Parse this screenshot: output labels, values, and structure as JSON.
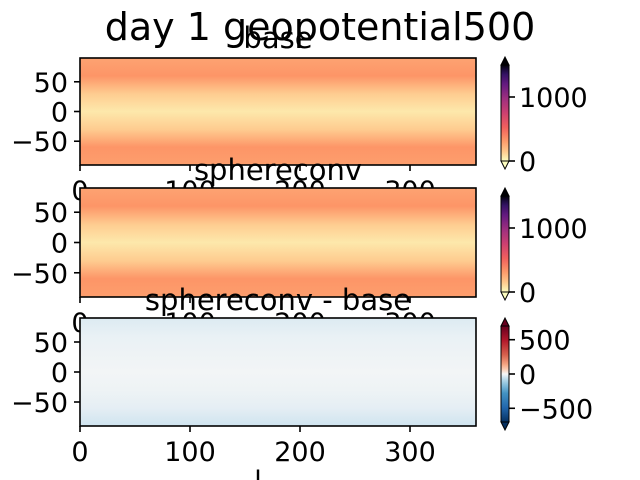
{
  "figure": {
    "suptitle": "day 1 geopotential500",
    "xlabel_fragment": "l"
  },
  "chart_data": [
    {
      "type": "heatmap",
      "title": "base",
      "xlabel": "",
      "ylabel": "",
      "xlim": [
        0,
        360
      ],
      "ylim": [
        -90,
        90
      ],
      "x_ticks": [
        0,
        100,
        200,
        300
      ],
      "y_ticks": [
        50,
        0,
        -50
      ],
      "y_tick_labels": [
        "50",
        "0",
        "−50"
      ],
      "colorbar": {
        "colormap": "magma_r",
        "vmin": 0,
        "vmax": 1500,
        "ticks": [
          0,
          1000
        ],
        "tick_labels": [
          "0",
          "1000"
        ],
        "extend": "both"
      },
      "field_profile": {
        "lat": [
          90,
          60,
          30,
          0,
          -30,
          -60,
          -90
        ],
        "value": [
          280,
          330,
          140,
          60,
          140,
          330,
          300
        ]
      }
    },
    {
      "type": "heatmap",
      "title": "sphereconv",
      "xlabel": "",
      "ylabel": "",
      "xlim": [
        0,
        360
      ],
      "ylim": [
        -90,
        90
      ],
      "x_ticks": [
        0,
        100,
        200,
        300
      ],
      "y_ticks": [
        50,
        0,
        -50
      ],
      "y_tick_labels": [
        "50",
        "0",
        "−50"
      ],
      "colorbar": {
        "colormap": "magma_r",
        "vmin": 0,
        "vmax": 1500,
        "ticks": [
          0,
          1000
        ],
        "tick_labels": [
          "0",
          "1000"
        ],
        "extend": "both"
      },
      "field_profile": {
        "lat": [
          90,
          60,
          30,
          0,
          -30,
          -60,
          -90
        ],
        "value": [
          280,
          330,
          140,
          60,
          140,
          330,
          300
        ]
      }
    },
    {
      "type": "heatmap",
      "title": "sphereconv - base",
      "xlabel": "",
      "ylabel": "",
      "xlim": [
        0,
        360
      ],
      "ylim": [
        -90,
        90
      ],
      "x_ticks": [
        0,
        100,
        200,
        300
      ],
      "y_ticks": [
        50,
        0,
        -50
      ],
      "y_tick_labels": [
        "50",
        "0",
        "−50"
      ],
      "colorbar": {
        "colormap": "RdBu_r",
        "vmin": -700,
        "vmax": 700,
        "ticks": [
          500,
          0,
          -500
        ],
        "tick_labels": [
          "500",
          "0",
          "−500"
        ],
        "extend": "both"
      },
      "field_profile": {
        "lat": [
          90,
          60,
          30,
          0,
          -30,
          -60,
          -90
        ],
        "value": [
          -30,
          -15,
          -10,
          -5,
          -10,
          -20,
          -45
        ]
      }
    }
  ]
}
